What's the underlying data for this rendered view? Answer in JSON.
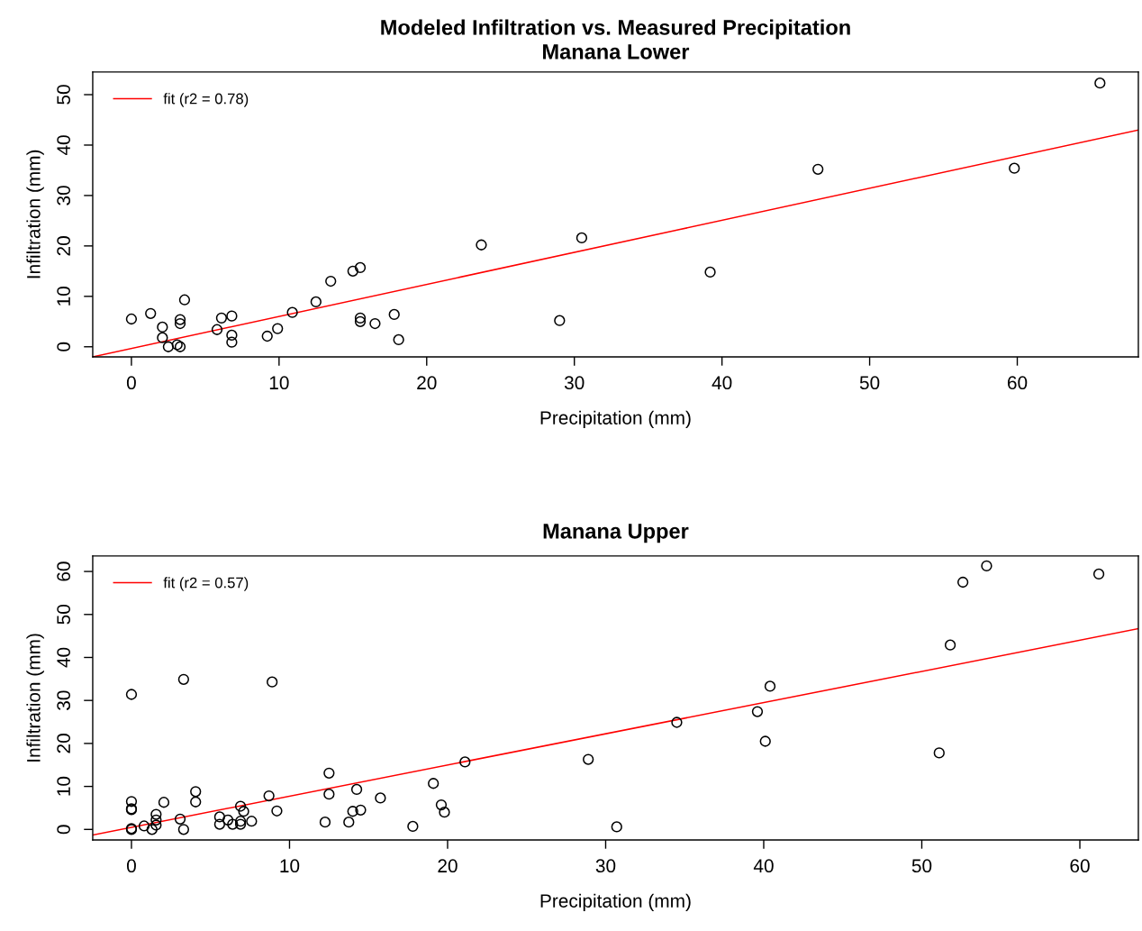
{
  "chart_data": [
    {
      "type": "scatter",
      "title": "Modeled Infiltration vs. Measured Precipitation",
      "subtitle": "Manana Lower",
      "xlabel": "Precipitation (mm)",
      "ylabel": "Infiltration (mm)",
      "xlim": [
        -2.62,
        68.2
      ],
      "ylim": [
        -2.0,
        54.5
      ],
      "xticks": [
        0,
        10,
        20,
        30,
        40,
        50,
        60
      ],
      "yticks": [
        0,
        10,
        20,
        30,
        40,
        50
      ],
      "grid": false,
      "legend": "top left",
      "series": [
        {
          "marker": "circle",
          "color": "#000000",
          "x": [
            0,
            1.3,
            2.1,
            2.1,
            2.5,
            3.1,
            3.3,
            3.3,
            3.3,
            3.6,
            5.8,
            6.1,
            6.8,
            6.8,
            6.8,
            9.2,
            9.9,
            10.9,
            12.5,
            13.5,
            15.0,
            15.5,
            15.5,
            15.5,
            16.5,
            17.8,
            18.1,
            23.7,
            29.0,
            30.5,
            39.2,
            46.5,
            59.8,
            65.6
          ],
          "values": [
            5.5,
            6.6,
            1.8,
            3.9,
            0,
            0.4,
            0,
            5.4,
            4.6,
            9.3,
            3.4,
            5.7,
            6.1,
            2.3,
            0.9,
            2.1,
            3.6,
            6.8,
            8.9,
            13.0,
            15.0,
            15.7,
            5.7,
            5.0,
            4.6,
            6.4,
            1.4,
            20.2,
            5.2,
            21.6,
            14.8,
            35.2,
            35.4,
            52.3
          ]
        },
        {
          "type": "line",
          "marker": "none",
          "name": "fit (r2 = 0.78)",
          "color": "#ff0000",
          "x": [
            -2.62,
            68.2
          ],
          "values": [
            -2.0,
            43.0
          ]
        }
      ]
    },
    {
      "type": "scatter",
      "title": "Manana Upper",
      "xlabel": "Precipitation (mm)",
      "ylabel": "Infiltration (mm)",
      "xlim": [
        -2.45,
        63.7
      ],
      "ylim": [
        -2.45,
        63.6
      ],
      "xticks": [
        0,
        10,
        20,
        30,
        40,
        50,
        60
      ],
      "yticks": [
        0,
        10,
        20,
        30,
        40,
        50,
        60
      ],
      "grid": false,
      "legend": "top left",
      "series": [
        {
          "marker": "circle",
          "color": "#000000",
          "x": [
            0,
            0,
            0,
            0,
            0,
            0,
            0.8,
            1.3,
            1.56,
            1.56,
            1.56,
            2.05,
            3.08,
            3.3,
            3.3,
            4.06,
            4.06,
            5.58,
            5.58,
            6.1,
            6.4,
            6.9,
            6.9,
            6.9,
            7.1,
            7.6,
            8.7,
            8.9,
            9.2,
            12.25,
            12.5,
            12.5,
            13.75,
            14.0,
            14.25,
            14.5,
            15.75,
            17.8,
            19.1,
            19.6,
            19.8,
            21.1,
            28.9,
            30.7,
            34.5,
            39.6,
            40.1,
            40.4,
            51.1,
            51.8,
            52.6,
            54.1,
            61.2
          ],
          "values": [
            31.4,
            6.5,
            4.8,
            4.6,
            0.2,
            0,
            0.8,
            0,
            3.5,
            2.2,
            1.0,
            6.3,
            2.4,
            0,
            34.9,
            8.8,
            6.4,
            2.9,
            1.2,
            2.2,
            1.2,
            5.4,
            1.9,
            1.2,
            4.2,
            1.9,
            7.8,
            34.3,
            4.3,
            1.7,
            13.1,
            8.2,
            1.7,
            4.2,
            9.3,
            4.5,
            7.3,
            0.7,
            10.7,
            5.7,
            4.0,
            15.7,
            16.3,
            0.6,
            24.9,
            27.4,
            20.5,
            33.3,
            17.8,
            42.9,
            57.5,
            61.3,
            59.4
          ]
        },
        {
          "type": "line",
          "marker": "none",
          "name": "fit (r2 = 0.57)",
          "color": "#ff0000",
          "x": [
            -2.45,
            63.7
          ],
          "values": [
            -1.3,
            46.7
          ]
        }
      ]
    }
  ]
}
